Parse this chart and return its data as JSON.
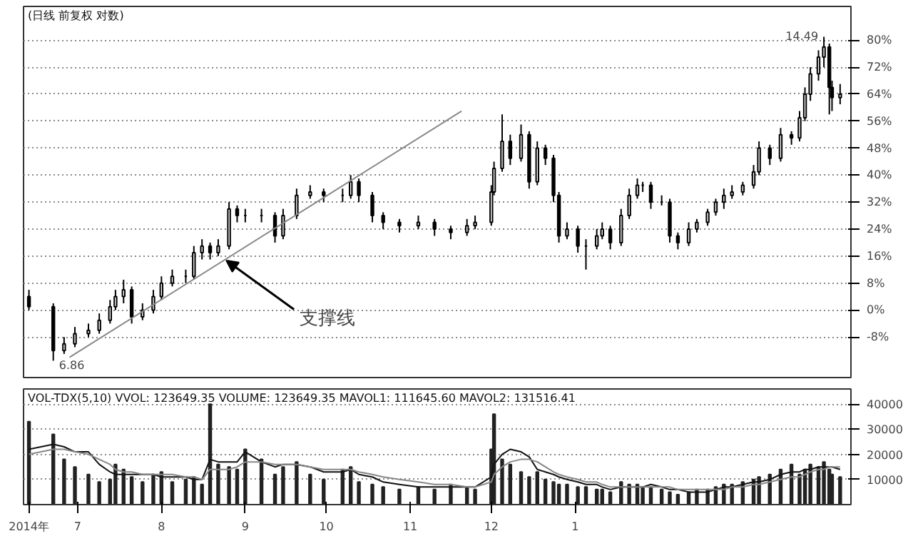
{
  "chart_data": [
    {
      "type": "candlestick",
      "title": "(日线 前复权 对数)",
      "grid": "y",
      "tick_labels": "y",
      "x": [
        "2014-06-13",
        "2014-06-22",
        "2014-06-26",
        "2014-06-30",
        "2014-07-05",
        "2014-07-09",
        "2014-07-13",
        "2014-07-15",
        "2014-07-18",
        "2014-07-21",
        "2014-07-25",
        "2014-07-29",
        "2014-08-01",
        "2014-08-05",
        "2014-08-10",
        "2014-08-13",
        "2014-08-16",
        "2014-08-19",
        "2014-08-22",
        "2014-08-26",
        "2014-08-29",
        "2014-09-01",
        "2014-09-07",
        "2014-09-12",
        "2014-09-15",
        "2014-09-20",
        "2014-09-25",
        "2014-09-30",
        "2014-10-07",
        "2014-10-10",
        "2014-10-13",
        "2014-10-18",
        "2014-10-22",
        "2014-10-28",
        "2014-11-04",
        "2014-11-10",
        "2014-11-16",
        "2014-11-22",
        "2014-11-25",
        "2014-12-01",
        "2014-12-02",
        "2014-12-05",
        "2014-12-08",
        "2014-12-12",
        "2014-12-15",
        "2014-12-18",
        "2014-12-21",
        "2014-12-24",
        "2014-12-26",
        "2014-12-29",
        "2015-01-02",
        "2015-01-05",
        "2015-01-09",
        "2015-01-11",
        "2015-01-14",
        "2015-01-18",
        "2015-01-21",
        "2015-01-24",
        "2015-01-26",
        "2015-01-29",
        "2015-02-02",
        "2015-02-05",
        "2015-02-08",
        "2015-02-12",
        "2015-02-15",
        "2015-02-19",
        "2015-02-22",
        "2015-02-25",
        "2015-02-28",
        "2015-03-04",
        "2015-03-08",
        "2015-03-10",
        "2015-03-14",
        "2015-03-18",
        "2015-03-22",
        "2015-03-25",
        "2015-03-27",
        "2015-03-29",
        "2015-04-01",
        "2015-04-03",
        "2015-04-05",
        "2015-04-06",
        "2015-04-09"
      ],
      "ohlc": [
        [
          4,
          6,
          0,
          1
        ],
        [
          1,
          2,
          -15,
          -12
        ],
        [
          -12,
          -8,
          -13,
          -10
        ],
        [
          -10,
          -5,
          -11,
          -7
        ],
        [
          -7,
          -4,
          -8,
          -6
        ],
        [
          -6,
          -1,
          -7,
          -3
        ],
        [
          -3,
          3,
          -4,
          1
        ],
        [
          1,
          6,
          0,
          4
        ],
        [
          4,
          9,
          2,
          6
        ],
        [
          6,
          7,
          -4,
          -2
        ],
        [
          -2,
          2,
          -3,
          0
        ],
        [
          0,
          6,
          -1,
          4
        ],
        [
          4,
          10,
          3,
          8
        ],
        [
          8,
          12,
          7,
          10
        ],
        [
          10,
          12,
          8,
          10
        ],
        [
          10,
          19,
          9,
          17
        ],
        [
          17,
          21,
          15,
          19
        ],
        [
          19,
          20,
          15,
          17
        ],
        [
          17,
          21,
          16,
          19
        ],
        [
          19,
          32,
          18,
          30
        ],
        [
          30,
          31,
          26,
          28
        ],
        [
          28,
          30,
          26,
          28
        ],
        [
          28,
          30,
          26,
          28
        ],
        [
          28,
          29,
          20,
          22
        ],
        [
          22,
          30,
          21,
          28
        ],
        [
          28,
          36,
          27,
          34
        ],
        [
          34,
          37,
          33,
          35
        ],
        [
          35,
          36,
          32,
          34
        ],
        [
          34,
          36,
          32,
          34
        ],
        [
          34,
          40,
          33,
          38
        ],
        [
          38,
          39,
          32,
          34
        ],
        [
          34,
          35,
          26,
          28
        ],
        [
          28,
          29,
          24,
          26
        ],
        [
          26,
          27,
          23,
          25
        ],
        [
          25,
          28,
          24,
          26
        ],
        [
          26,
          27,
          22,
          24
        ],
        [
          24,
          25,
          21,
          23
        ],
        [
          23,
          27,
          22,
          25
        ],
        [
          25,
          28,
          24,
          26
        ],
        [
          26,
          37,
          25,
          35
        ],
        [
          35,
          44,
          34,
          42
        ],
        [
          42,
          58,
          41,
          50
        ],
        [
          50,
          52,
          43,
          45
        ],
        [
          45,
          55,
          44,
          52
        ],
        [
          52,
          53,
          36,
          38
        ],
        [
          38,
          50,
          37,
          48
        ],
        [
          48,
          49,
          43,
          45
        ],
        [
          45,
          46,
          32,
          34
        ],
        [
          34,
          35,
          20,
          22
        ],
        [
          22,
          26,
          21,
          24
        ],
        [
          24,
          25,
          17,
          19
        ],
        [
          19,
          21,
          12,
          19
        ],
        [
          19,
          24,
          18,
          22
        ],
        [
          22,
          26,
          21,
          24
        ],
        [
          24,
          25,
          18,
          20
        ],
        [
          20,
          30,
          19,
          28
        ],
        [
          28,
          36,
          27,
          34
        ],
        [
          34,
          39,
          33,
          37
        ],
        [
          37,
          38,
          35,
          37
        ],
        [
          37,
          38,
          30,
          32
        ],
        [
          32,
          34,
          31,
          32
        ],
        [
          32,
          33,
          20,
          22
        ],
        [
          22,
          23,
          18,
          20
        ],
        [
          20,
          26,
          19,
          24
        ],
        [
          24,
          27,
          23,
          26
        ],
        [
          26,
          30,
          25,
          29
        ],
        [
          29,
          33,
          28,
          32
        ],
        [
          32,
          36,
          30,
          34
        ],
        [
          34,
          37,
          33,
          35
        ],
        [
          35,
          38,
          34,
          37
        ],
        [
          37,
          43,
          36,
          41
        ],
        [
          41,
          50,
          40,
          48
        ],
        [
          48,
          49,
          43,
          45
        ],
        [
          45,
          54,
          44,
          52
        ],
        [
          52,
          53,
          49,
          51
        ],
        [
          51,
          59,
          50,
          57
        ],
        [
          57,
          66,
          56,
          64
        ],
        [
          64,
          72,
          62,
          70
        ],
        [
          70,
          77,
          68,
          75
        ],
        [
          75,
          81,
          72,
          78
        ],
        [
          78,
          79,
          58,
          66
        ],
        [
          66,
          68,
          59,
          63
        ],
        [
          63,
          67,
          61,
          64
        ]
      ],
      "series": [
        {
          "type": "line",
          "x": [
            "2014-06-28",
            "2014-11-20"
          ],
          "values": [
            -14,
            59
          ],
          "color": "#888888"
        }
      ],
      "xlim": [
        "2014-06-11",
        "2015-04-13"
      ],
      "ylim": [
        -20,
        90
      ],
      "yticks": [
        {
          "value": 80,
          "label": "80%"
        },
        {
          "value": 72,
          "label": "72%"
        },
        {
          "value": 64,
          "label": "64%"
        },
        {
          "value": 56,
          "label": "56%"
        },
        {
          "value": 48,
          "label": "48%"
        },
        {
          "value": 40,
          "label": "40%"
        },
        {
          "value": 32,
          "label": "32%"
        },
        {
          "value": 24,
          "label": "24%"
        },
        {
          "value": 16,
          "label": "16%"
        },
        {
          "value": 8,
          "label": "8%"
        },
        {
          "value": 0,
          "label": "0%"
        },
        {
          "value": -8,
          "label": "-8%"
        }
      ],
      "annotations": [
        {
          "text": "支撑线",
          "x": "2014-08-25",
          "y": 15.2
        },
        {
          "text": "6.86",
          "x": "2014-06-22",
          "y": -15
        },
        {
          "text": "14.49",
          "x": "2015-04-03",
          "y": 81
        }
      ]
    },
    {
      "type": "bar",
      "title": "VOL-TDX(5,10) VVOL: 123649.35 VOLUME: 123649.35 MAVOL1: 111645.60 MAVOL2: 131516.41",
      "grid": "y",
      "x": [
        "2014-06-13",
        "2014-06-22",
        "2014-06-26",
        "2014-06-30",
        "2014-07-05",
        "2014-07-09",
        "2014-07-13",
        "2014-07-15",
        "2014-07-18",
        "2014-07-21",
        "2014-07-25",
        "2014-07-29",
        "2014-08-01",
        "2014-08-05",
        "2014-08-10",
        "2014-08-13",
        "2014-08-16",
        "2014-08-19",
        "2014-08-22",
        "2014-08-26",
        "2014-08-29",
        "2014-09-01",
        "2014-09-07",
        "2014-09-12",
        "2014-09-15",
        "2014-09-20",
        "2014-09-25",
        "2014-09-30",
        "2014-10-07",
        "2014-10-10",
        "2014-10-13",
        "2014-10-18",
        "2014-10-22",
        "2014-10-28",
        "2014-11-04",
        "2014-11-10",
        "2014-11-16",
        "2014-11-22",
        "2014-11-25",
        "2014-12-01",
        "2014-12-02",
        "2014-12-05",
        "2014-12-08",
        "2014-12-12",
        "2014-12-15",
        "2014-12-18",
        "2014-12-21",
        "2014-12-24",
        "2014-12-26",
        "2014-12-29",
        "2015-01-02",
        "2015-01-05",
        "2015-01-09",
        "2015-01-11",
        "2015-01-14",
        "2015-01-18",
        "2015-01-21",
        "2015-01-24",
        "2015-01-26",
        "2015-01-29",
        "2015-02-02",
        "2015-02-05",
        "2015-02-08",
        "2015-02-12",
        "2015-02-15",
        "2015-02-19",
        "2015-02-22",
        "2015-02-25",
        "2015-02-28",
        "2015-03-04",
        "2015-03-08",
        "2015-03-10",
        "2015-03-14",
        "2015-03-18",
        "2015-03-22",
        "2015-03-25",
        "2015-03-27",
        "2015-03-29",
        "2015-04-01",
        "2015-04-03",
        "2015-04-05",
        "2015-04-06",
        "2015-04-09"
      ],
      "series": [
        {
          "type": "bar",
          "color": "#222222",
          "values": [
            33000,
            28000,
            18000,
            15000,
            12000,
            9000,
            10000,
            16000,
            14000,
            11000,
            9000,
            12000,
            13000,
            9000,
            10000,
            11000,
            8000,
            40000,
            16000,
            15000,
            14000,
            22000,
            18000,
            12000,
            15000,
            17000,
            12000,
            10000,
            14000,
            15000,
            9000,
            8000,
            7000,
            6000,
            7000,
            6000,
            8000,
            7000,
            6000,
            22000,
            36000,
            18000,
            16000,
            13000,
            11000,
            13000,
            10000,
            9000,
            8000,
            8000,
            7000,
            7000,
            6000,
            6000,
            5000,
            9000,
            8000,
            8000,
            7000,
            7000,
            6000,
            5000,
            4000,
            5000,
            6000,
            6000,
            7000,
            8000,
            8000,
            9000,
            10000,
            11000,
            12000,
            14000,
            16000,
            12000,
            14000,
            16000,
            15000,
            17000,
            14000,
            12000,
            11000
          ]
        },
        {
          "type": "line",
          "color": "#111111",
          "values": [
            22000,
            24000,
            23000,
            21000,
            21000,
            16000,
            13000,
            12000,
            12000,
            12000,
            12000,
            12000,
            11000,
            11000,
            11000,
            10000,
            10000,
            18000,
            17000,
            17000,
            17000,
            21000,
            17000,
            15000,
            16000,
            16000,
            15000,
            13000,
            13000,
            14000,
            12000,
            11000,
            9000,
            8000,
            7000,
            7000,
            7000,
            7000,
            7000,
            11000,
            16000,
            20000,
            22000,
            21000,
            19000,
            14000,
            13000,
            12000,
            11000,
            10000,
            9000,
            8000,
            8000,
            7000,
            6000,
            7000,
            7000,
            7000,
            7000,
            8000,
            7000,
            6000,
            6000,
            5000,
            5000,
            5000,
            6000,
            7000,
            7000,
            8000,
            9000,
            9000,
            10000,
            12000,
            13000,
            13000,
            14000,
            14000,
            15000,
            15000,
            15000,
            15000,
            14000
          ]
        },
        {
          "type": "line",
          "color": "#888888",
          "values": [
            20000,
            22000,
            22000,
            21000,
            20000,
            18000,
            16000,
            14000,
            13000,
            13000,
            12000,
            12000,
            12000,
            12000,
            11000,
            11000,
            10000,
            14000,
            14000,
            14000,
            15000,
            17000,
            17000,
            16000,
            16000,
            16000,
            15000,
            14000,
            14000,
            14000,
            13000,
            12000,
            11000,
            10000,
            9000,
            8000,
            8000,
            7000,
            7000,
            9000,
            12000,
            15000,
            17000,
            18000,
            18000,
            17000,
            15000,
            13000,
            12000,
            11000,
            10000,
            9000,
            9000,
            8000,
            7000,
            7000,
            7000,
            7000,
            7000,
            7000,
            7000,
            7000,
            6000,
            6000,
            6000,
            6000,
            6000,
            6000,
            7000,
            7000,
            8000,
            8000,
            9000,
            10000,
            11000,
            11000,
            12000,
            13000,
            14000,
            14000,
            15000,
            15000,
            15000
          ]
        }
      ],
      "xlim": [
        "2014-06-11",
        "2015-04-13"
      ],
      "xticks": [
        {
          "value": "2014-06-13",
          "label": "2014年"
        },
        {
          "value": "2014-07-01",
          "label": "7"
        },
        {
          "value": "2014-08-01",
          "label": "8"
        },
        {
          "value": "2014-09-01",
          "label": "9"
        },
        {
          "value": "2014-10-01",
          "label": "10"
        },
        {
          "value": "2014-11-01",
          "label": "11"
        },
        {
          "value": "2014-12-01",
          "label": "12"
        },
        {
          "value": "2015-01-01",
          "label": "1"
        }
      ],
      "ylim": [
        0,
        46000
      ],
      "yticks": [
        10000,
        20000,
        30000,
        40000
      ]
    }
  ]
}
